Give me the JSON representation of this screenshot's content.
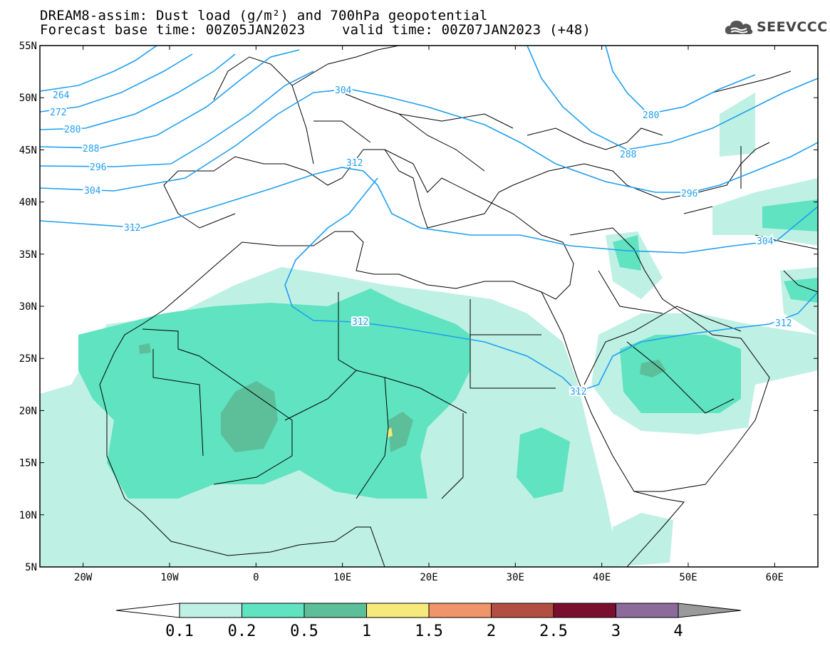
{
  "title": {
    "line1": "DREAM8-assim: Dust load (g/m²) and 700hPa geopotential",
    "base_time_label": "Forecast base time: 00Z05JAN2023",
    "valid_time_label": "valid time: 00Z07JAN2023 (+48)"
  },
  "logo": {
    "text": "SEEVCCC",
    "icon": "cloud-icon"
  },
  "map": {
    "lon_range": [
      -25,
      65
    ],
    "lat_range": [
      5,
      55
    ],
    "lat_ticks": [
      "55N",
      "50N",
      "45N",
      "40N",
      "35N",
      "30N",
      "25N",
      "20N",
      "15N",
      "10N",
      "5N"
    ],
    "lon_ticks": [
      "20W",
      "10W",
      "0",
      "10E",
      "20E",
      "30E",
      "40E",
      "50E",
      "60E"
    ],
    "contour_labels": [
      "264",
      "272",
      "280",
      "288",
      "296",
      "304",
      "312",
      "304",
      "312",
      "280",
      "288",
      "296",
      "304",
      "312",
      "312"
    ]
  },
  "colorbar": {
    "labels": [
      "0.1",
      "0.2",
      "0.5",
      "1",
      "1.5",
      "2",
      "2.5",
      "3",
      "4"
    ],
    "colors": [
      "#ffffff",
      "#bff0e4",
      "#5fe3c0",
      "#5cbf9a",
      "#f6ea7a",
      "#f0956a",
      "#b34f42",
      "#7a0e2e",
      "#8c6a9c",
      "#9a9a9a"
    ]
  }
}
